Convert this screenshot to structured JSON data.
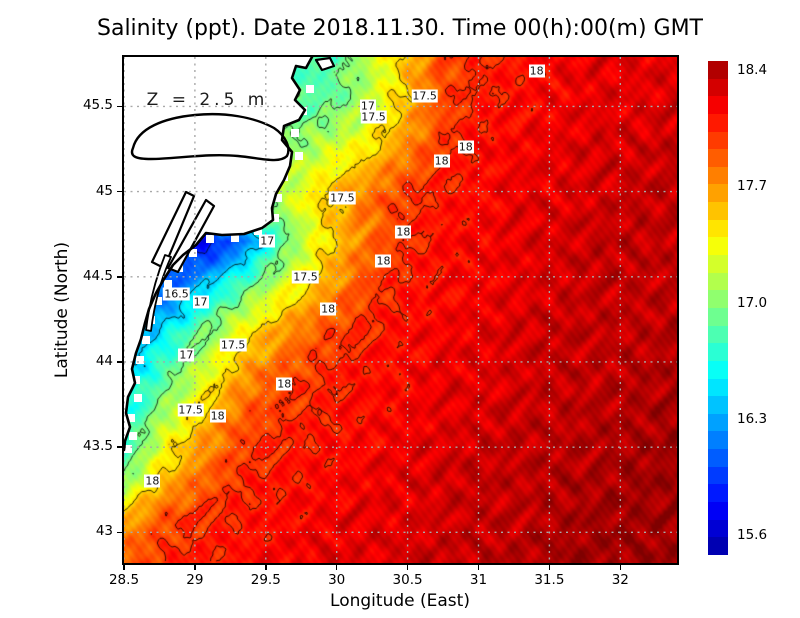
{
  "chart_data": {
    "type": "heatmap",
    "title": "Salinity (ppt). Date 2018.11.30. Time 00(h):00(m) GMT",
    "xlabel": "Longitude (East)",
    "ylabel": "Latitude (North)",
    "units": "ppt",
    "xlim": [
      28.5,
      32.4
    ],
    "ylim": [
      42.82,
      45.79
    ],
    "grid": true,
    "grid_style": "dotted",
    "annotation": {
      "text": "Z = 2.5 m",
      "lon": 28.66,
      "lat": 45.53
    },
    "x_ticks": [
      {
        "label": "28.5",
        "value": 28.5
      },
      {
        "label": "29",
        "value": 29
      },
      {
        "label": "29.5",
        "value": 29.5
      },
      {
        "label": "30",
        "value": 30
      },
      {
        "label": "30.5",
        "value": 30.5
      },
      {
        "label": "31",
        "value": 31
      },
      {
        "label": "31.5",
        "value": 31.5
      },
      {
        "label": "32",
        "value": 32
      }
    ],
    "y_ticks": [
      {
        "label": "45.5",
        "value": 45.5
      },
      {
        "label": "45",
        "value": 45
      },
      {
        "label": "44.5",
        "value": 44.5
      },
      {
        "label": "44",
        "value": 44
      },
      {
        "label": "43.5",
        "value": 43.5
      },
      {
        "label": "43",
        "value": 43
      }
    ],
    "colorbar": {
      "min": 15.6,
      "max": 18.4,
      "colormap": "jet",
      "tick_labels": [
        "18.4",
        "17.7",
        "17.0",
        "16.3",
        "15.6"
      ],
      "tick_values": [
        18.4,
        17.7,
        17.0,
        16.3,
        15.6
      ],
      "color_top": "#8b0000",
      "color_bottom": "#00008c"
    },
    "contour_levels": [
      16,
      16.5,
      17,
      17.5,
      18
    ],
    "contour_labels": [
      {
        "text": "18",
        "lon": 31.41,
        "lat": 45.71
      },
      {
        "text": "17.5",
        "lon": 30.62,
        "lat": 45.56
      },
      {
        "text": "17",
        "lon": 30.22,
        "lat": 45.5
      },
      {
        "text": "17.5",
        "lon": 30.26,
        "lat": 45.44
      },
      {
        "text": "18",
        "lon": 30.91,
        "lat": 45.26
      },
      {
        "text": "18",
        "lon": 30.74,
        "lat": 45.18
      },
      {
        "text": "17.5",
        "lon": 30.04,
        "lat": 44.96
      },
      {
        "text": "18",
        "lon": 30.47,
        "lat": 44.76
      },
      {
        "text": "17",
        "lon": 29.51,
        "lat": 44.71
      },
      {
        "text": "18",
        "lon": 30.33,
        "lat": 44.59
      },
      {
        "text": "17.5",
        "lon": 29.78,
        "lat": 44.5
      },
      {
        "text": "16.5",
        "lon": 28.87,
        "lat": 44.4
      },
      {
        "text": "17",
        "lon": 29.04,
        "lat": 44.35
      },
      {
        "text": "18",
        "lon": 29.94,
        "lat": 44.31
      },
      {
        "text": "17.5",
        "lon": 29.27,
        "lat": 44.1
      },
      {
        "text": "17",
        "lon": 28.94,
        "lat": 44.04
      },
      {
        "text": "18",
        "lon": 29.63,
        "lat": 43.87
      },
      {
        "text": "17.5",
        "lon": 28.97,
        "lat": 43.72
      },
      {
        "text": "18",
        "lon": 29.16,
        "lat": 43.68
      },
      {
        "text": "18",
        "lon": 28.7,
        "lat": 43.3
      }
    ],
    "salinity_grid": {
      "lons": [
        28.5,
        28.78,
        29.06,
        29.34,
        29.62,
        29.89,
        30.17,
        30.45,
        30.73,
        31.01,
        31.29,
        31.56,
        31.84,
        32.12,
        32.4
      ],
      "lats": [
        45.79,
        45.52,
        45.25,
        44.98,
        44.71,
        44.44,
        44.17,
        43.9,
        43.63,
        43.36,
        43.09,
        42.82
      ],
      "values": [
        [
          16.9,
          16.9,
          16.9,
          16.9,
          16.9,
          16.8,
          17.1,
          17.5,
          17.9,
          18.0,
          18.05,
          18.15,
          18.2,
          18.2,
          18.2
        ],
        [
          16.9,
          16.9,
          16.9,
          16.9,
          16.9,
          16.9,
          17.1,
          17.5,
          17.9,
          18.05,
          18.1,
          18.15,
          18.2,
          18.2,
          18.25
        ],
        [
          17.0,
          17.0,
          17.0,
          17.0,
          17.0,
          17.2,
          17.4,
          17.7,
          17.95,
          18.1,
          18.15,
          18.2,
          18.25,
          18.25,
          18.3
        ],
        [
          17.1,
          17.1,
          17.1,
          17.1,
          17.2,
          17.5,
          17.75,
          17.95,
          18.05,
          18.1,
          18.2,
          18.2,
          18.25,
          18.3,
          18.3
        ],
        [
          16.4,
          16.1,
          15.8,
          16.2,
          16.9,
          17.4,
          17.75,
          17.95,
          18.1,
          18.15,
          18.2,
          18.25,
          18.3,
          18.3,
          18.3
        ],
        [
          16.3,
          16.1,
          16.5,
          16.9,
          17.3,
          17.6,
          17.9,
          18.05,
          18.1,
          18.15,
          18.2,
          18.25,
          18.3,
          18.3,
          18.3
        ],
        [
          16.3,
          16.6,
          17.0,
          17.4,
          17.7,
          17.9,
          18.0,
          18.1,
          18.15,
          18.2,
          18.25,
          18.3,
          18.3,
          18.3,
          18.35
        ],
        [
          16.5,
          16.9,
          17.3,
          17.7,
          17.9,
          18.0,
          18.1,
          18.1,
          18.2,
          18.2,
          18.25,
          18.3,
          18.3,
          18.35,
          18.35
        ],
        [
          16.7,
          17.2,
          17.6,
          17.9,
          18.0,
          18.05,
          18.1,
          18.15,
          18.2,
          18.25,
          18.3,
          18.3,
          18.35,
          18.35,
          18.4
        ],
        [
          16.9,
          17.5,
          17.8,
          18.0,
          18.05,
          18.1,
          18.15,
          18.2,
          18.25,
          18.3,
          18.3,
          18.35,
          18.35,
          18.4,
          18.4
        ],
        [
          17.6,
          17.9,
          18.0,
          18.05,
          18.1,
          18.15,
          18.2,
          18.2,
          18.25,
          18.3,
          18.3,
          18.35,
          18.4,
          18.4,
          18.4
        ],
        [
          17.9,
          18.0,
          18.05,
          18.1,
          18.15,
          18.2,
          18.2,
          18.25,
          18.3,
          18.3,
          18.35,
          18.4,
          18.4,
          18.4,
          18.4
        ]
      ]
    }
  }
}
